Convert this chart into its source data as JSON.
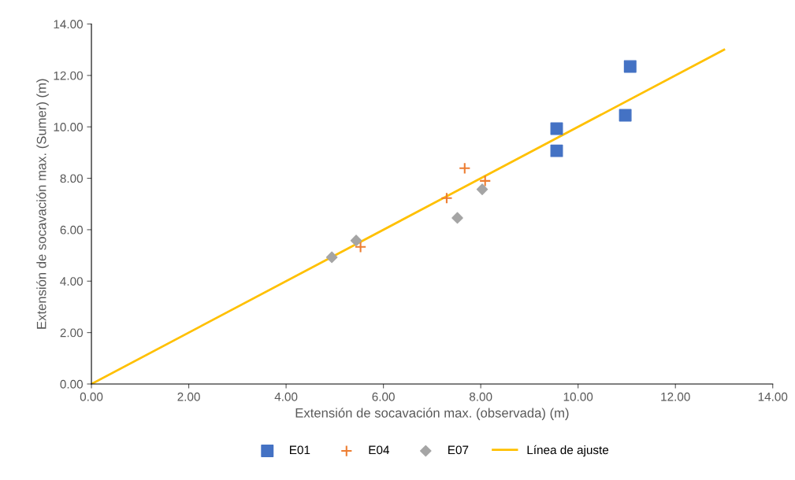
{
  "chart_data": {
    "type": "scatter",
    "xlabel": "Extensión de socavación max. (observada) (m)",
    "ylabel": "Extensión de socavación max. (Sumer) (m)",
    "xlim": [
      0,
      14
    ],
    "ylim": [
      0,
      14
    ],
    "xticks": [
      {
        "value": 0,
        "label": "0.00"
      },
      {
        "value": 2,
        "label": "2.00"
      },
      {
        "value": 4,
        "label": "4.00"
      },
      {
        "value": 6,
        "label": "6.00"
      },
      {
        "value": 8,
        "label": "8.00"
      },
      {
        "value": 10,
        "label": "10.00"
      },
      {
        "value": 12,
        "label": "12.00"
      },
      {
        "value": 14,
        "label": "14.00"
      }
    ],
    "yticks": [
      {
        "value": 0,
        "label": "0.00"
      },
      {
        "value": 2,
        "label": "2.00"
      },
      {
        "value": 4,
        "label": "4.00"
      },
      {
        "value": 6,
        "label": "6.00"
      },
      {
        "value": 8,
        "label": "8.00"
      },
      {
        "value": 10,
        "label": "10.00"
      },
      {
        "value": 12,
        "label": "12.00"
      },
      {
        "value": 14,
        "label": "14.00"
      }
    ],
    "grid": false,
    "legend": "bottom",
    "series": [
      {
        "name": "E01",
        "color": "#4472c4",
        "marker": "square",
        "x": [
          9.56,
          9.56,
          10.97,
          11.07
        ],
        "values": [
          9.93,
          9.07,
          10.45,
          12.35
        ]
      },
      {
        "name": "E04",
        "color": "#ed7d31",
        "marker": "cross",
        "x": [
          7.67,
          7.3,
          8.09,
          5.53
        ],
        "values": [
          8.39,
          7.23,
          7.9,
          5.33
        ]
      },
      {
        "name": "E07",
        "color": "#a5a5a5",
        "marker": "diamond",
        "x": [
          4.94,
          5.44,
          7.52,
          8.03
        ],
        "values": [
          4.93,
          5.58,
          6.46,
          7.57
        ]
      },
      {
        "name": "Línea de ajuste",
        "type": "line",
        "color": "#ffc000",
        "marker": "none",
        "x": [
          0,
          13
        ],
        "values": [
          0,
          13
        ]
      }
    ]
  }
}
